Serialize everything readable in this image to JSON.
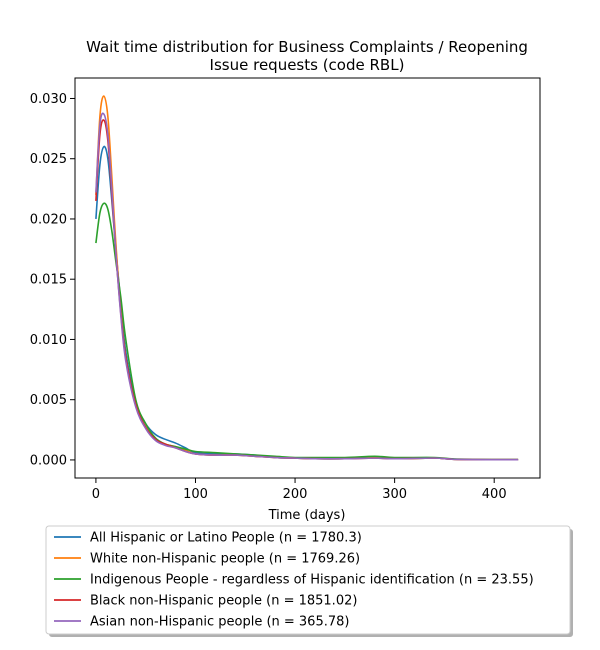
{
  "chart_data": {
    "type": "line",
    "title_lines": [
      "Wait time distribution  for Business Complaints / Reopening",
      "Issue  requests (code RBL)"
    ],
    "xlabel": "Time (days)",
    "ylabel": "",
    "xlim": [
      -21,
      446
    ],
    "ylim": [
      -0.0015,
      0.0317
    ],
    "xticks": [
      0,
      100,
      200,
      300,
      400
    ],
    "xtick_labels": [
      "0",
      "100",
      "200",
      "300",
      "400"
    ],
    "yticks": [
      0.0,
      0.005,
      0.01,
      0.015,
      0.02,
      0.025,
      0.03
    ],
    "ytick_labels": [
      "0.000",
      "0.005",
      "0.010",
      "0.015",
      "0.020",
      "0.025",
      "0.030"
    ],
    "grid": false,
    "legend_position": "below plot",
    "series": [
      {
        "name": "All Hispanic or Latino People (n = 1780.3)",
        "color": "#1f77b4",
        "x": [
          0,
          4,
          8,
          12,
          16,
          20,
          25,
          30,
          40,
          50,
          60,
          70,
          80,
          90,
          100,
          120,
          140,
          160,
          180,
          200,
          220,
          250,
          280,
          300,
          340,
          360,
          400,
          424
        ],
        "y": [
          0.02,
          0.0245,
          0.026,
          0.025,
          0.0215,
          0.0175,
          0.013,
          0.009,
          0.0048,
          0.003,
          0.0021,
          0.0017,
          0.0014,
          0.001,
          0.0006,
          0.0005,
          0.0005,
          0.0004,
          0.0002,
          0.00015,
          0.0001,
          0.0001,
          0.0002,
          0.0001,
          0.00015,
          5e-05,
          2e-05,
          2e-05
        ]
      },
      {
        "name": "White non-Hispanic people (n = 1769.26)",
        "color": "#ff7f0e",
        "x": [
          0,
          4,
          8,
          12,
          16,
          20,
          25,
          30,
          40,
          50,
          60,
          70,
          80,
          90,
          100,
          120,
          140,
          160,
          180,
          200,
          220,
          250,
          280,
          300,
          340,
          360,
          400,
          424
        ],
        "y": [
          0.022,
          0.0285,
          0.0302,
          0.0285,
          0.0235,
          0.018,
          0.0125,
          0.0085,
          0.0045,
          0.0027,
          0.0017,
          0.0013,
          0.0011,
          0.0008,
          0.0005,
          0.0004,
          0.0004,
          0.0003,
          0.0002,
          0.00015,
          0.0001,
          0.0001,
          0.0002,
          0.0001,
          0.00015,
          5e-05,
          2e-05,
          2e-05
        ]
      },
      {
        "name": "Indigenous People - regardless of Hispanic identification (n = 23.55)",
        "color": "#2ca02c",
        "x": [
          0,
          4,
          8,
          12,
          16,
          20,
          25,
          30,
          40,
          50,
          60,
          70,
          80,
          90,
          100,
          120,
          140,
          160,
          180,
          200,
          220,
          250,
          280,
          300,
          340,
          360,
          400,
          424
        ],
        "y": [
          0.018,
          0.0205,
          0.0213,
          0.0208,
          0.019,
          0.0165,
          0.0135,
          0.01,
          0.005,
          0.003,
          0.0018,
          0.0013,
          0.0011,
          0.0009,
          0.0007,
          0.0006,
          0.0005,
          0.0004,
          0.0003,
          0.0002,
          0.0002,
          0.0002,
          0.0003,
          0.0002,
          0.0002,
          8e-05,
          3e-05,
          3e-05
        ]
      },
      {
        "name": "Black non-Hispanic people (n = 1851.02)",
        "color": "#d62728",
        "x": [
          0,
          4,
          8,
          12,
          16,
          20,
          25,
          30,
          40,
          50,
          60,
          70,
          80,
          90,
          100,
          120,
          140,
          160,
          180,
          200,
          220,
          250,
          280,
          300,
          340,
          360,
          400,
          424
        ],
        "y": [
          0.0215,
          0.027,
          0.0282,
          0.0265,
          0.022,
          0.0172,
          0.0122,
          0.0085,
          0.0046,
          0.0027,
          0.0017,
          0.0013,
          0.001,
          0.0007,
          0.0005,
          0.0004,
          0.0004,
          0.0003,
          0.0002,
          0.00015,
          0.0001,
          0.0001,
          0.00015,
          0.0001,
          0.00015,
          5e-05,
          2e-05,
          2e-05
        ]
      },
      {
        "name": "Asian non-Hispanic people (n = 365.78)",
        "color": "#9467bd",
        "x": [
          0,
          4,
          8,
          12,
          16,
          20,
          25,
          30,
          40,
          50,
          60,
          70,
          80,
          90,
          100,
          120,
          140,
          160,
          180,
          200,
          220,
          250,
          280,
          300,
          340,
          360,
          400,
          424
        ],
        "y": [
          0.0222,
          0.0278,
          0.0287,
          0.027,
          0.0225,
          0.0173,
          0.012,
          0.0082,
          0.0044,
          0.0026,
          0.0016,
          0.0012,
          0.001,
          0.0007,
          0.0005,
          0.0004,
          0.0004,
          0.0003,
          0.0002,
          0.00015,
          0.0001,
          0.0001,
          0.00015,
          0.0001,
          0.00015,
          5e-05,
          2e-05,
          2e-05
        ]
      }
    ]
  }
}
